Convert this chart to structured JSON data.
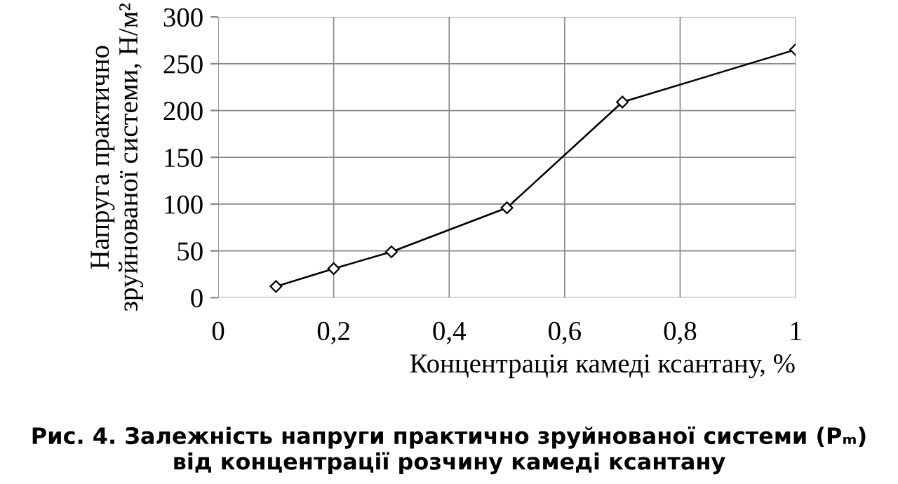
{
  "chart_data": {
    "type": "line",
    "xlabel": "Концентрація камеді ксантану, %",
    "ylabel": "Напруга практично\nзруйнованої системи, Н/м²",
    "x": [
      0.1,
      0.2,
      0.3,
      0.5,
      0.7,
      1.0
    ],
    "series": [
      {
        "color": "#000000",
        "values": [
          12,
          31,
          49,
          96,
          209,
          265
        ]
      }
    ],
    "xlim": [
      0,
      1
    ],
    "ylim": [
      0,
      300
    ],
    "xticks": [
      0,
      {
        "value": 0.2,
        "label": "0,2"
      },
      {
        "value": 0.4,
        "label": "0,4"
      },
      {
        "value": 0.6,
        "label": "0,6"
      },
      {
        "value": 0.8,
        "label": "0,8"
      },
      1
    ],
    "yticks": [
      0,
      50,
      100,
      150,
      200,
      250,
      300
    ],
    "grid": true,
    "marker": "diamond",
    "line_style": "solid",
    "annotations": [
      "Рис. 4. Залежність напруги практично зруйнованої системи (Pₘ)\nвід концентрації розчину камеді ксантану"
    ]
  }
}
